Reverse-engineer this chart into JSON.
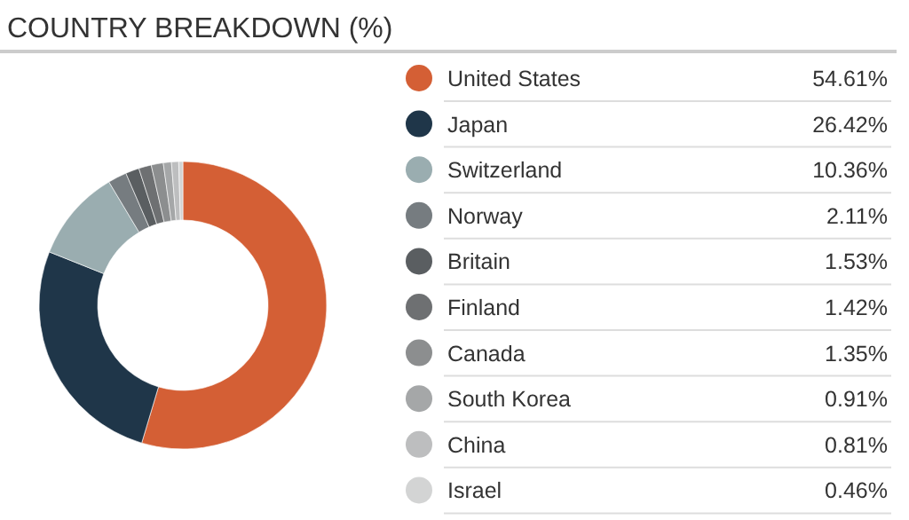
{
  "chart_data": {
    "type": "donut",
    "title": "COUNTRY BREAKDOWN (%)",
    "categories": [
      "United States",
      "Japan",
      "Switzerland",
      "Norway",
      "Britain",
      "Finland",
      "Canada",
      "South Korea",
      "China",
      "Israel"
    ],
    "values": [
      54.61,
      26.42,
      10.36,
      2.11,
      1.53,
      1.42,
      1.35,
      0.91,
      0.81,
      0.46
    ],
    "value_labels": [
      "54.61%",
      "26.42%",
      "10.36%",
      "2.11%",
      "1.53%",
      "1.42%",
      "1.35%",
      "0.91%",
      "0.81%",
      "0.46%"
    ],
    "colors": [
      "#d45f35",
      "#1f3649",
      "#9aadb0",
      "#767c80",
      "#5a5e61",
      "#6e7072",
      "#8c8e8f",
      "#a5a7a8",
      "#bdbebf",
      "#d3d4d4"
    ],
    "legend": "right"
  }
}
